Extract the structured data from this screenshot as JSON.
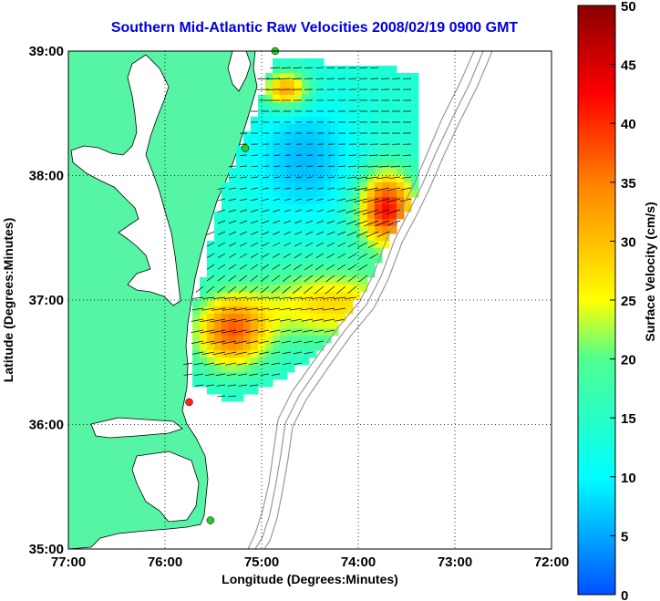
{
  "title": "Southern Mid-Atlantic Raw Velocities 2008/02/19 0900 GMT",
  "x_axis": {
    "label": "Longitude (Degrees:Minutes)",
    "ticks": [
      "77:00",
      "76:00",
      "75:00",
      "74:00",
      "73:00",
      "72:00"
    ],
    "tick_values": [
      -77,
      -76,
      -75,
      -74,
      -73,
      -72
    ]
  },
  "y_axis": {
    "label": "Latitude (Degrees:Minutes)",
    "ticks": [
      "35:00",
      "36:00",
      "37:00",
      "38:00",
      "39:00"
    ],
    "tick_values": [
      35,
      36,
      37,
      38,
      39
    ]
  },
  "colorbar": {
    "label": "Surface Velocity (cm/s)",
    "ticks": [
      "0",
      "5",
      "10",
      "15",
      "20",
      "25",
      "30",
      "35",
      "40",
      "45",
      "50"
    ],
    "min": 0,
    "max": 50
  },
  "colors": {
    "land": "#55f5a5",
    "grid": "#000000",
    "coast": "#000000",
    "bathymetry": "#999999",
    "station_green": "#22cc22",
    "station_red": "#ff2222"
  },
  "stations": [
    {
      "type": "green",
      "lon": -74.86,
      "lat": 39.0
    },
    {
      "type": "green",
      "lon": -75.17,
      "lat": 38.22
    },
    {
      "type": "green",
      "lon": -75.53,
      "lat": 35.23
    },
    {
      "type": "red",
      "lon": -75.75,
      "lat": 36.18
    }
  ]
}
